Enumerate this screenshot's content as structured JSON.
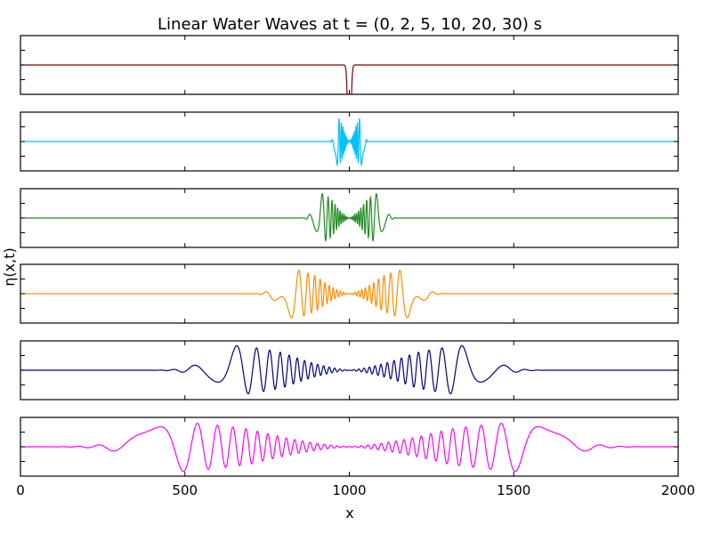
{
  "chart_data": {
    "type": "line",
    "title": "Linear Water Waves at t = (0, 2, 5, 10, 20, 30) s",
    "xlabel": "x",
    "ylabel": "η(x,t)",
    "xlim": [
      0,
      2000
    ],
    "xticks": [
      0,
      500,
      1000,
      1500,
      2000
    ],
    "xtick_labels": [
      "0",
      "500",
      "1000",
      "1500",
      "2000"
    ],
    "grid": false,
    "panels": [
      {
        "t": 0,
        "color": "#800000",
        "center": 1000,
        "envelope_halfwidth": 6,
        "amplitude": 1.0
      },
      {
        "t": 2,
        "color": "#00bfff",
        "center": 1000,
        "envelope_halfwidth": 45,
        "amplitude": 0.45
      },
      {
        "t": 5,
        "color": "#228b22",
        "center": 1000,
        "envelope_halfwidth": 110,
        "amplitude": 0.45
      },
      {
        "t": 10,
        "color": "#ff8c00",
        "center": 1000,
        "envelope_halfwidth": 220,
        "amplitude": 0.45
      },
      {
        "t": 20,
        "color": "#000080",
        "center": 1000,
        "envelope_halfwidth": 440,
        "amplitude": 0.45
      },
      {
        "t": 30,
        "color": "#ff00ff",
        "center": 1000,
        "envelope_halfwidth": 660,
        "amplitude": 0.45
      }
    ]
  }
}
